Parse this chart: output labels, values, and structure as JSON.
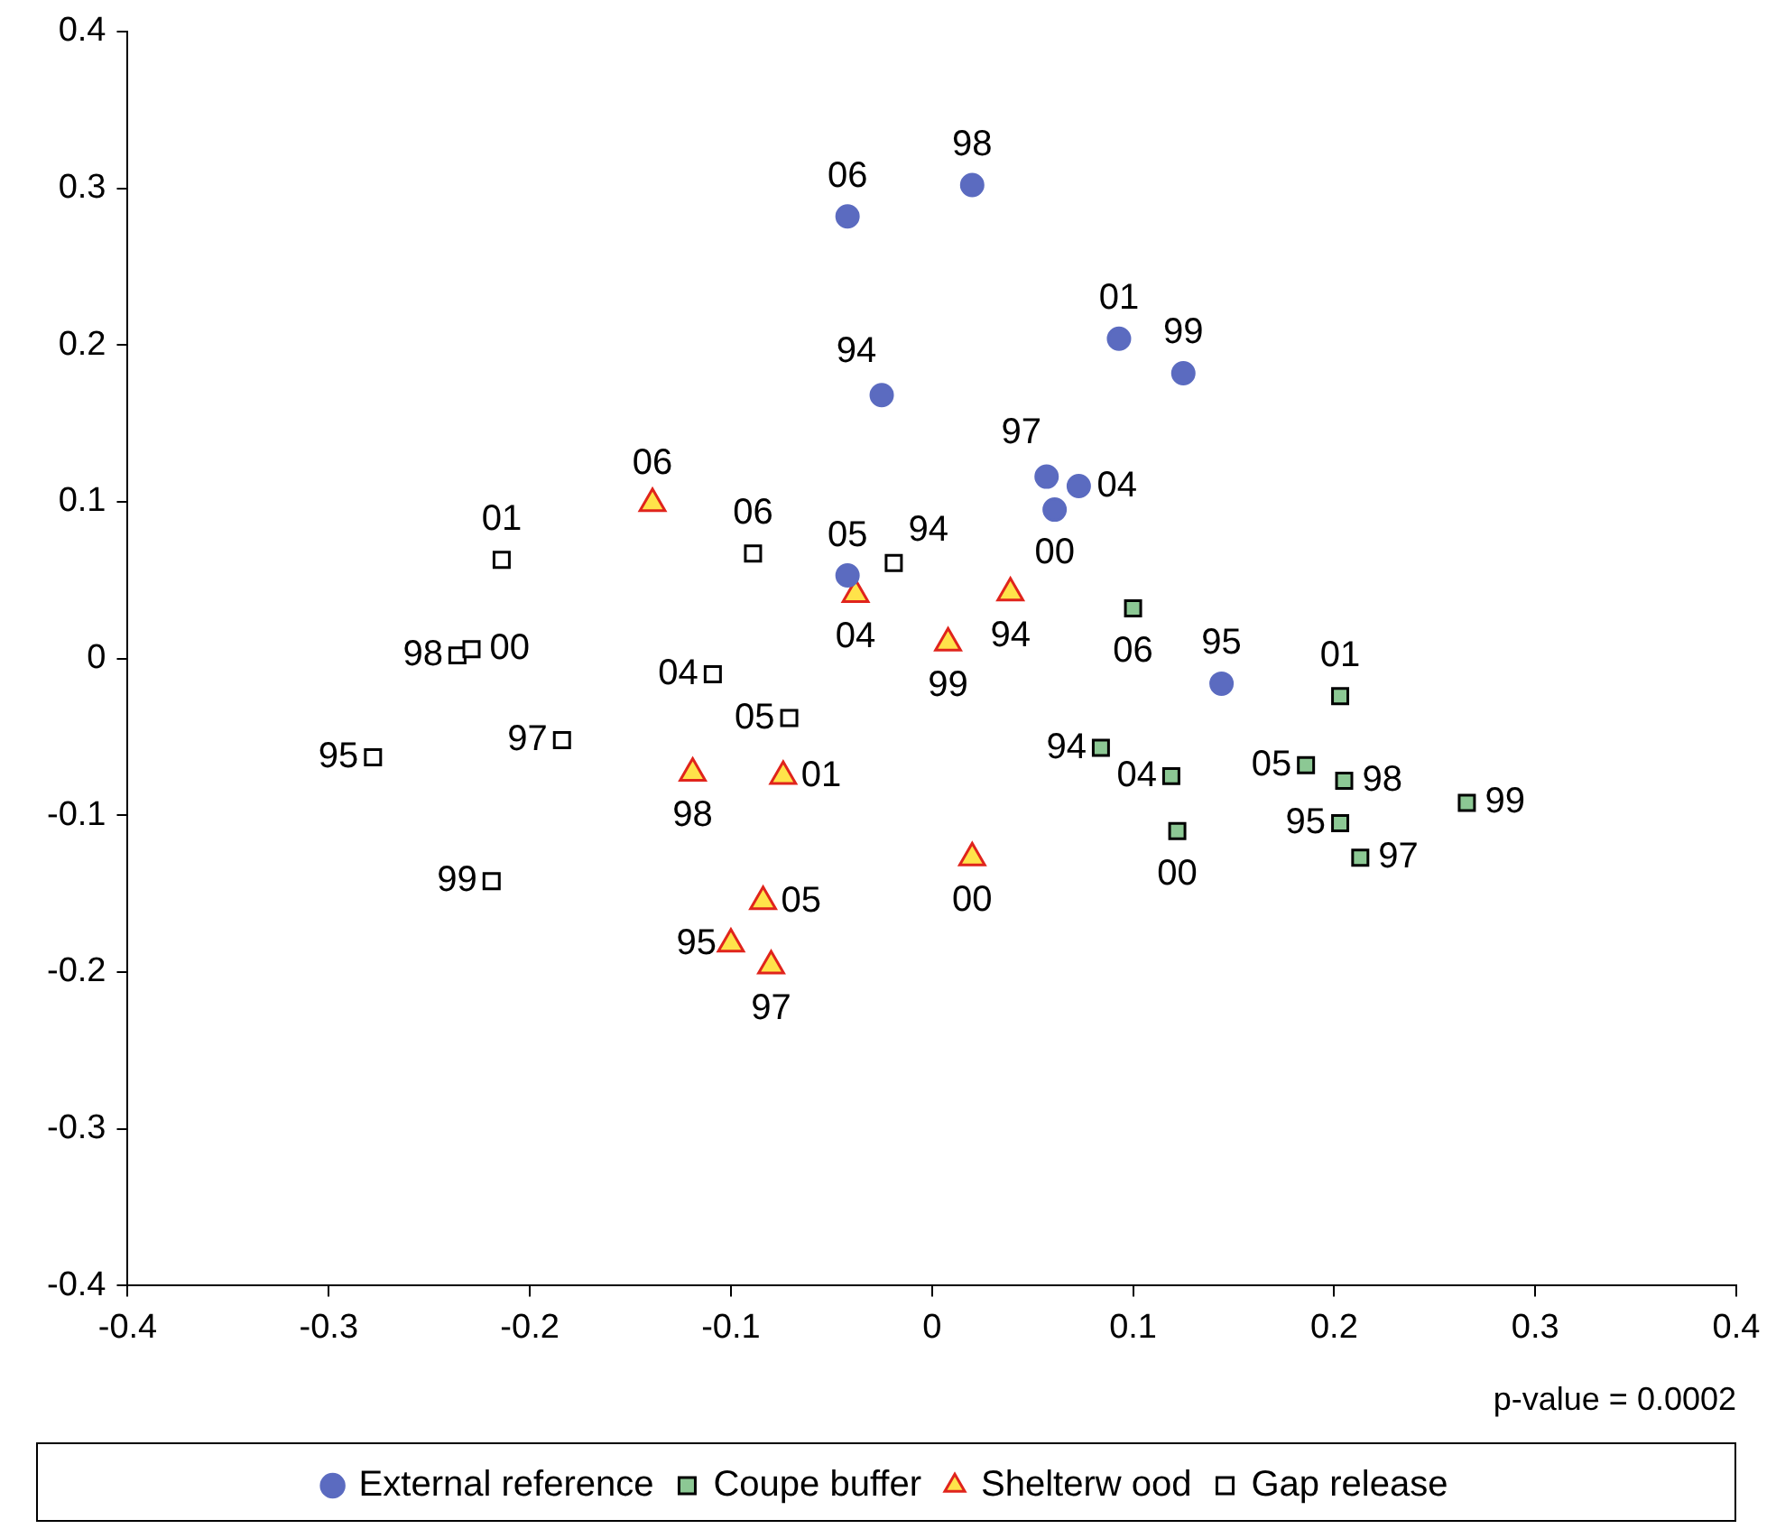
{
  "chart_data": {
    "type": "scatter",
    "xlim": [
      -0.4,
      0.4
    ],
    "ylim": [
      -0.4,
      0.4
    ],
    "xticks": [
      -0.4,
      -0.3,
      -0.2,
      -0.1,
      0,
      0.1,
      0.2,
      0.3,
      0.4
    ],
    "yticks": [
      -0.4,
      -0.3,
      -0.2,
      -0.1,
      0,
      0.1,
      0.2,
      0.3,
      0.4
    ],
    "grid": false,
    "legend": "bottom",
    "series": [
      {
        "name": "External reference",
        "color": "#5b6bc0",
        "marker": "circle",
        "x": [
          -0.042,
          0.02,
          0.093,
          0.125,
          -0.025,
          0.057,
          0.073,
          0.061,
          -0.042,
          0.144
        ],
        "values": [
          0.282,
          0.302,
          0.204,
          0.182,
          0.168,
          0.116,
          0.11,
          0.095,
          0.053,
          -0.016
        ]
      },
      {
        "name": "Coupe buffer",
        "color": "#8cc894",
        "marker": "square",
        "x": [
          0.1,
          0.203,
          0.084,
          0.119,
          0.186,
          0.205,
          0.203,
          0.122,
          0.213,
          0.266
        ],
        "values": [
          0.032,
          -0.024,
          -0.057,
          -0.075,
          -0.068,
          -0.078,
          -0.105,
          -0.11,
          -0.127,
          -0.092
        ]
      },
      {
        "name": "Shelterw ood",
        "color": "#ffe34a",
        "marker": "triangle",
        "x": [
          -0.139,
          -0.038,
          0.039,
          0.008,
          -0.119,
          -0.074,
          0.02,
          -0.084,
          -0.1,
          -0.08
        ],
        "values": [
          0.099,
          0.041,
          0.042,
          0.01,
          -0.073,
          -0.075,
          -0.127,
          -0.155,
          -0.182,
          -0.196
        ]
      },
      {
        "name": "Gap release",
        "color": "#ffffff",
        "marker": "square",
        "x": [
          -0.214,
          -0.089,
          -0.019,
          -0.236,
          -0.229,
          -0.109,
          -0.071,
          -0.184,
          -0.278,
          -0.219
        ],
        "values": [
          0.063,
          0.067,
          0.061,
          0.002,
          0.006,
          -0.01,
          -0.038,
          -0.052,
          -0.063,
          -0.142
        ]
      }
    ],
    "annotations": [
      "p-value = 0.0002",
      {
        "text": "06",
        "x": -0.042,
        "y": 0.282
      },
      {
        "text": "98",
        "x": 0.02,
        "y": 0.302
      },
      {
        "text": "01",
        "x": 0.093,
        "y": 0.204
      },
      {
        "text": "99",
        "x": 0.125,
        "y": 0.182
      },
      {
        "text": "94",
        "x": -0.025,
        "y": 0.168
      },
      {
        "text": "97",
        "x": 0.057,
        "y": 0.116
      },
      {
        "text": "04",
        "x": 0.073,
        "y": 0.11
      },
      {
        "text": "00",
        "x": 0.061,
        "y": 0.095
      },
      {
        "text": "05",
        "x": -0.042,
        "y": 0.053
      },
      {
        "text": "95",
        "x": 0.144,
        "y": -0.016
      },
      {
        "text": "06",
        "x": 0.1,
        "y": 0.032
      },
      {
        "text": "01",
        "x": 0.203,
        "y": -0.024
      },
      {
        "text": "94",
        "x": 0.084,
        "y": -0.057
      },
      {
        "text": "04",
        "x": 0.119,
        "y": -0.075
      },
      {
        "text": "05",
        "x": 0.186,
        "y": -0.068
      },
      {
        "text": "98",
        "x": 0.205,
        "y": -0.078
      },
      {
        "text": "95",
        "x": 0.203,
        "y": -0.105
      },
      {
        "text": "00",
        "x": 0.122,
        "y": -0.11
      },
      {
        "text": "97",
        "x": 0.213,
        "y": -0.127
      },
      {
        "text": "99",
        "x": 0.266,
        "y": -0.092
      },
      {
        "text": "06",
        "x": -0.139,
        "y": 0.099
      },
      {
        "text": "04",
        "x": -0.038,
        "y": 0.041
      },
      {
        "text": "94",
        "x": 0.039,
        "y": 0.042
      },
      {
        "text": "99",
        "x": 0.008,
        "y": 0.01
      },
      {
        "text": "98",
        "x": -0.119,
        "y": -0.073
      },
      {
        "text": "01",
        "x": -0.074,
        "y": -0.075
      },
      {
        "text": "00",
        "x": 0.02,
        "y": -0.127
      },
      {
        "text": "05",
        "x": -0.084,
        "y": -0.155
      },
      {
        "text": "95",
        "x": -0.1,
        "y": -0.182
      },
      {
        "text": "97",
        "x": -0.08,
        "y": -0.196
      },
      {
        "text": "01",
        "x": -0.214,
        "y": 0.063
      },
      {
        "text": "06",
        "x": -0.089,
        "y": 0.067
      },
      {
        "text": "94",
        "x": -0.019,
        "y": 0.061
      },
      {
        "text": "98",
        "x": -0.236,
        "y": 0.002
      },
      {
        "text": "00",
        "x": -0.229,
        "y": 0.006
      },
      {
        "text": "04",
        "x": -0.109,
        "y": -0.01
      },
      {
        "text": "05",
        "x": -0.071,
        "y": -0.038
      },
      {
        "text": "97",
        "x": -0.184,
        "y": -0.052
      },
      {
        "text": "95",
        "x": -0.278,
        "y": -0.063
      },
      {
        "text": "99",
        "x": -0.219,
        "y": -0.142
      }
    ]
  }
}
